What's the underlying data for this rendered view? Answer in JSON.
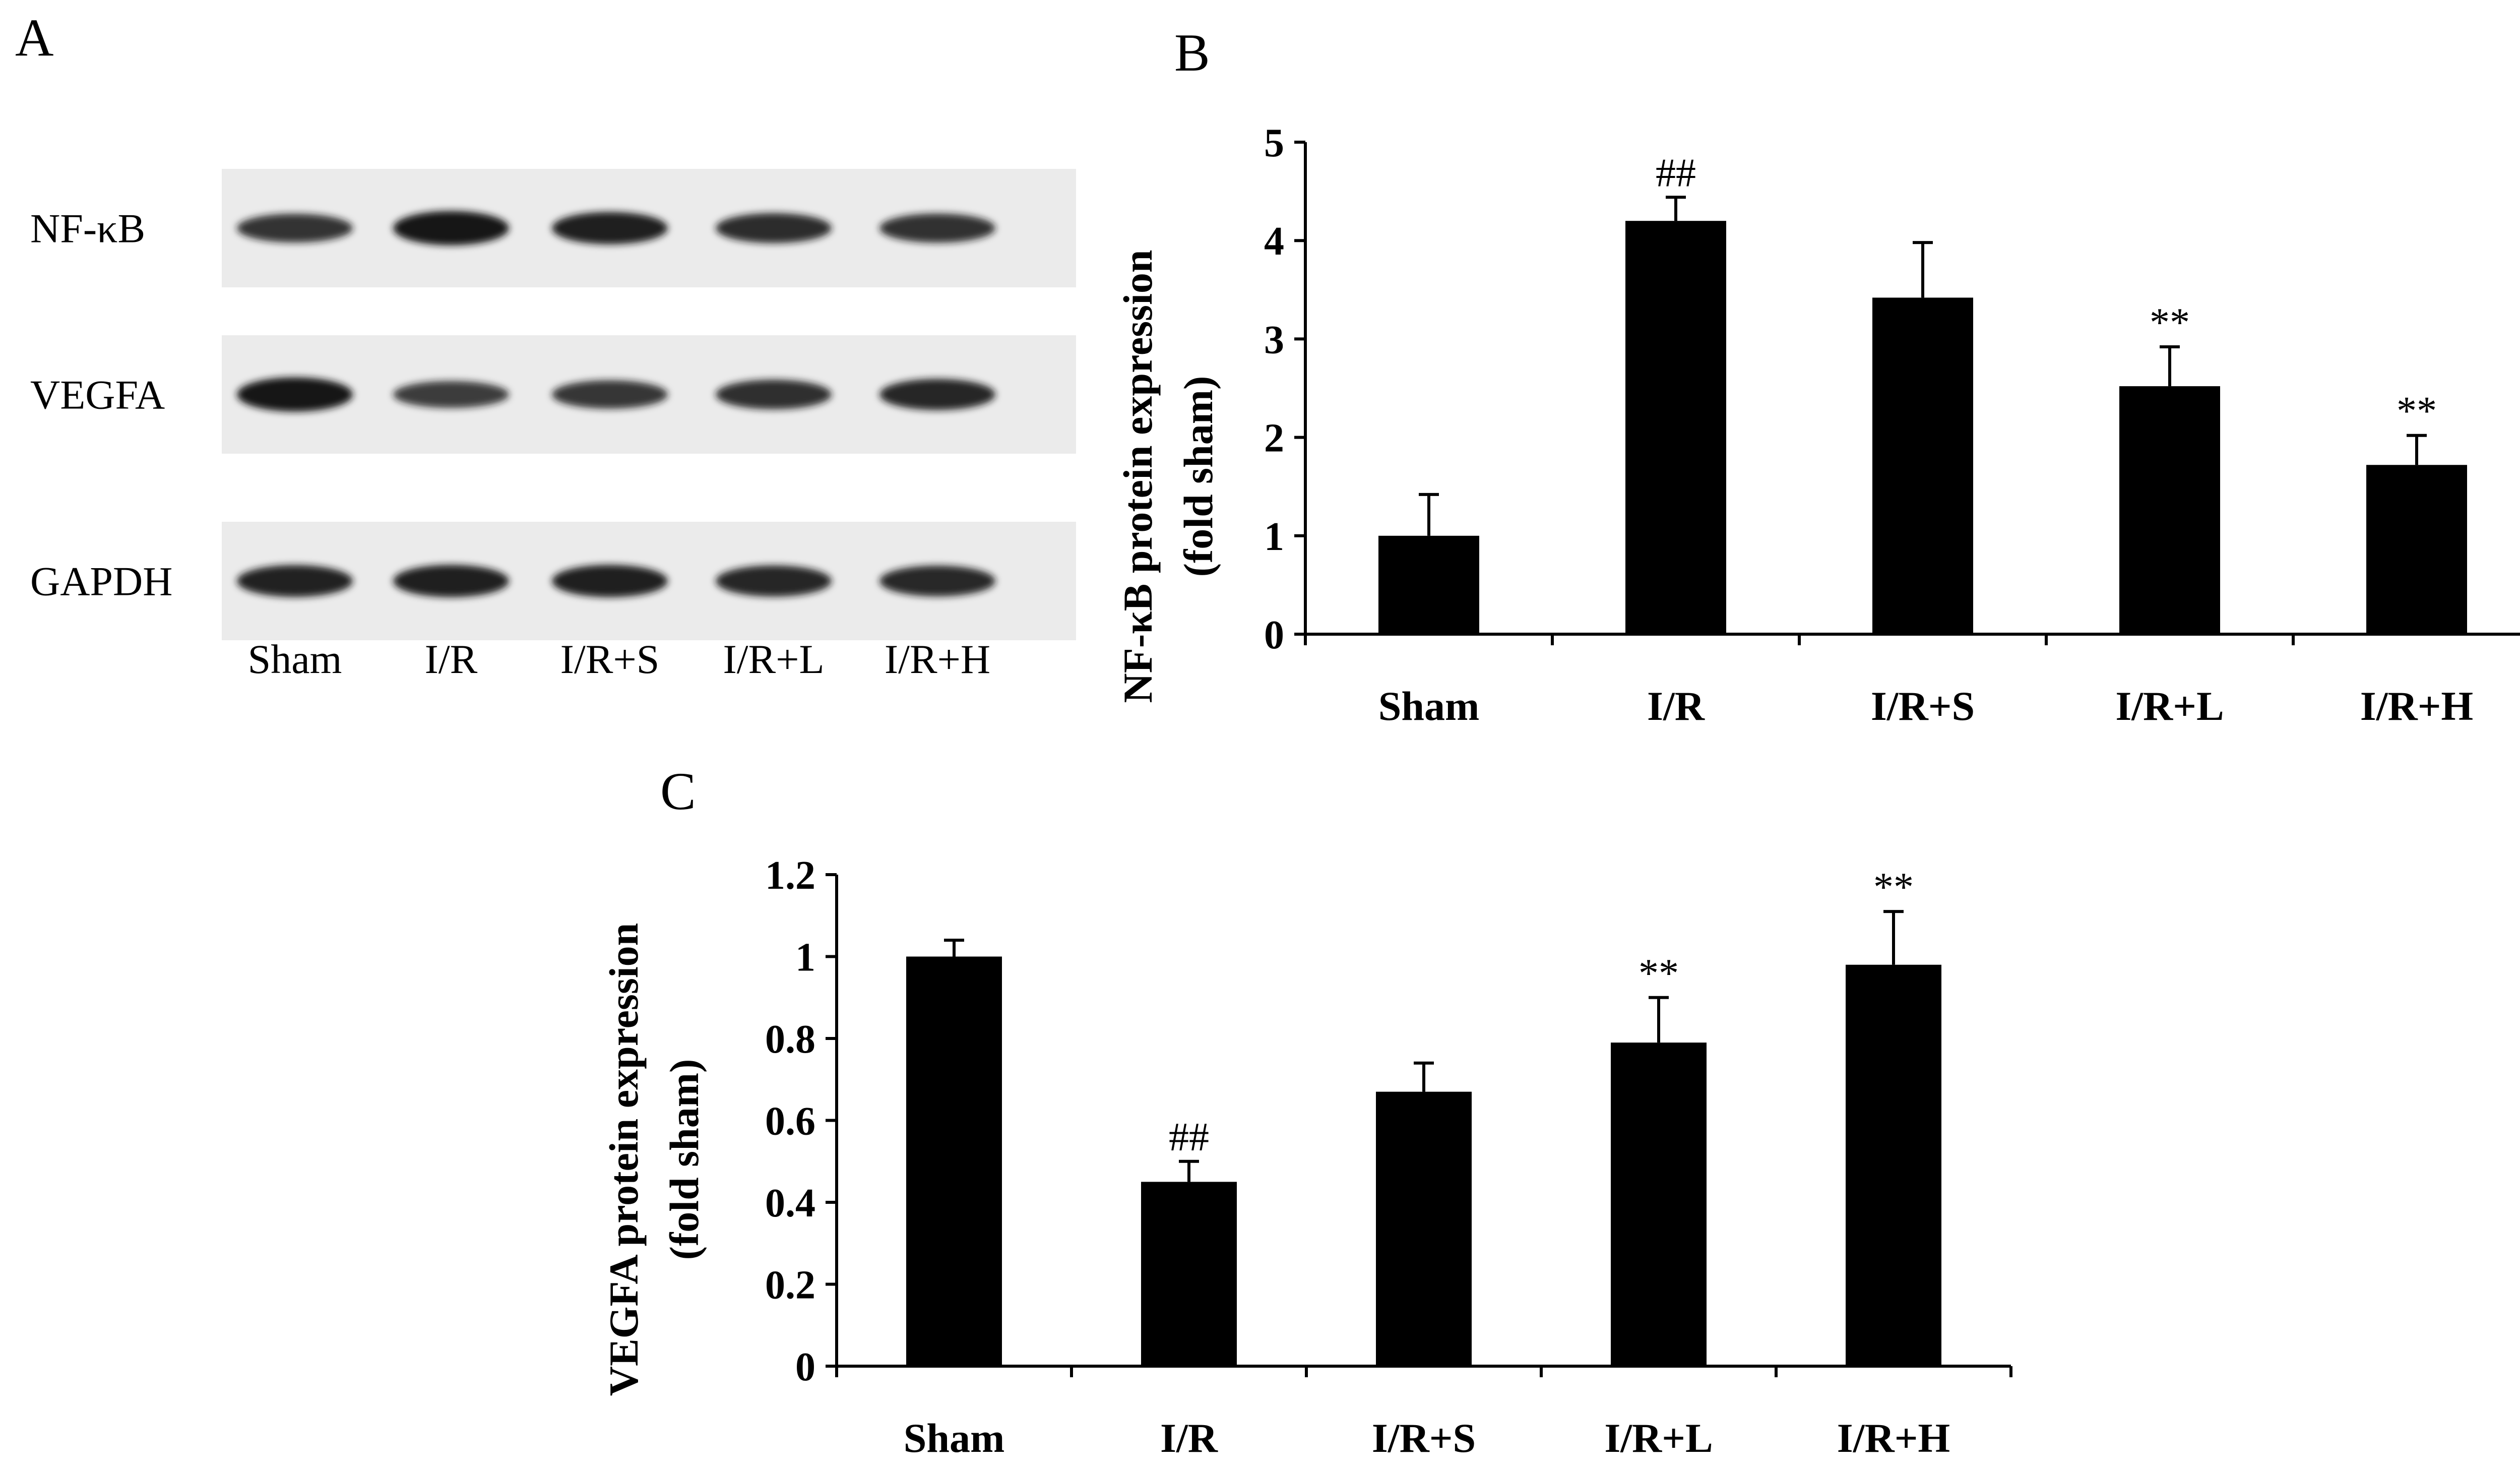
{
  "panels": {
    "A": "A",
    "B": "B",
    "C": "C"
  },
  "blot": {
    "rows": [
      {
        "label": "NF-κB",
        "intensities": [
          0.72,
          1.0,
          0.9,
          0.78,
          0.74
        ]
      },
      {
        "label": "VEGFA",
        "intensities": [
          1.0,
          0.62,
          0.7,
          0.76,
          0.84
        ]
      },
      {
        "label": "GAPDH",
        "intensities": [
          0.88,
          0.9,
          0.9,
          0.84,
          0.82
        ]
      }
    ],
    "lanes": [
      "Sham",
      "I/R",
      "I/R+S",
      "I/R+L",
      "I/R+H"
    ],
    "colors": {
      "background": "#ebebeb",
      "band": "#141414"
    }
  },
  "chart_data": [
    {
      "type": "bar",
      "panel": "B",
      "categories": [
        "Sham",
        "I/R",
        "I/R+S",
        "I/R+L",
        "I/R+H"
      ],
      "values": [
        1.0,
        4.2,
        3.42,
        2.52,
        1.72
      ],
      "errors": [
        0.42,
        0.24,
        0.56,
        0.4,
        0.3
      ],
      "annotations": [
        "",
        "##",
        "",
        "**",
        "**"
      ],
      "ylabel_line1": "NF-κB protein expression",
      "ylabel_line2": "(fold sham)",
      "ylim": [
        0,
        5
      ],
      "yticks": [
        0,
        1,
        2,
        3,
        4,
        5
      ],
      "ytick_labels": [
        "0",
        "1",
        "2",
        "3",
        "4",
        "5"
      ],
      "bar_color": "#000000"
    },
    {
      "type": "bar",
      "panel": "C",
      "categories": [
        "Sham",
        "I/R",
        "I/R+S",
        "I/R+L",
        "I/R+H"
      ],
      "values": [
        1.0,
        0.45,
        0.67,
        0.79,
        0.98
      ],
      "errors": [
        0.04,
        0.05,
        0.07,
        0.11,
        0.13
      ],
      "annotations": [
        "",
        "##",
        "",
        "**",
        "**"
      ],
      "ylabel_line1": "VEGFA protein expression",
      "ylabel_line2": "(fold sham)",
      "ylim": [
        0,
        1.2
      ],
      "yticks": [
        0,
        0.2,
        0.4,
        0.6,
        0.8,
        1.0,
        1.2
      ],
      "ytick_labels": [
        "0",
        "0.2",
        "0.4",
        "0.6",
        "0.8",
        "1",
        "1.2"
      ],
      "bar_color": "#000000"
    }
  ]
}
